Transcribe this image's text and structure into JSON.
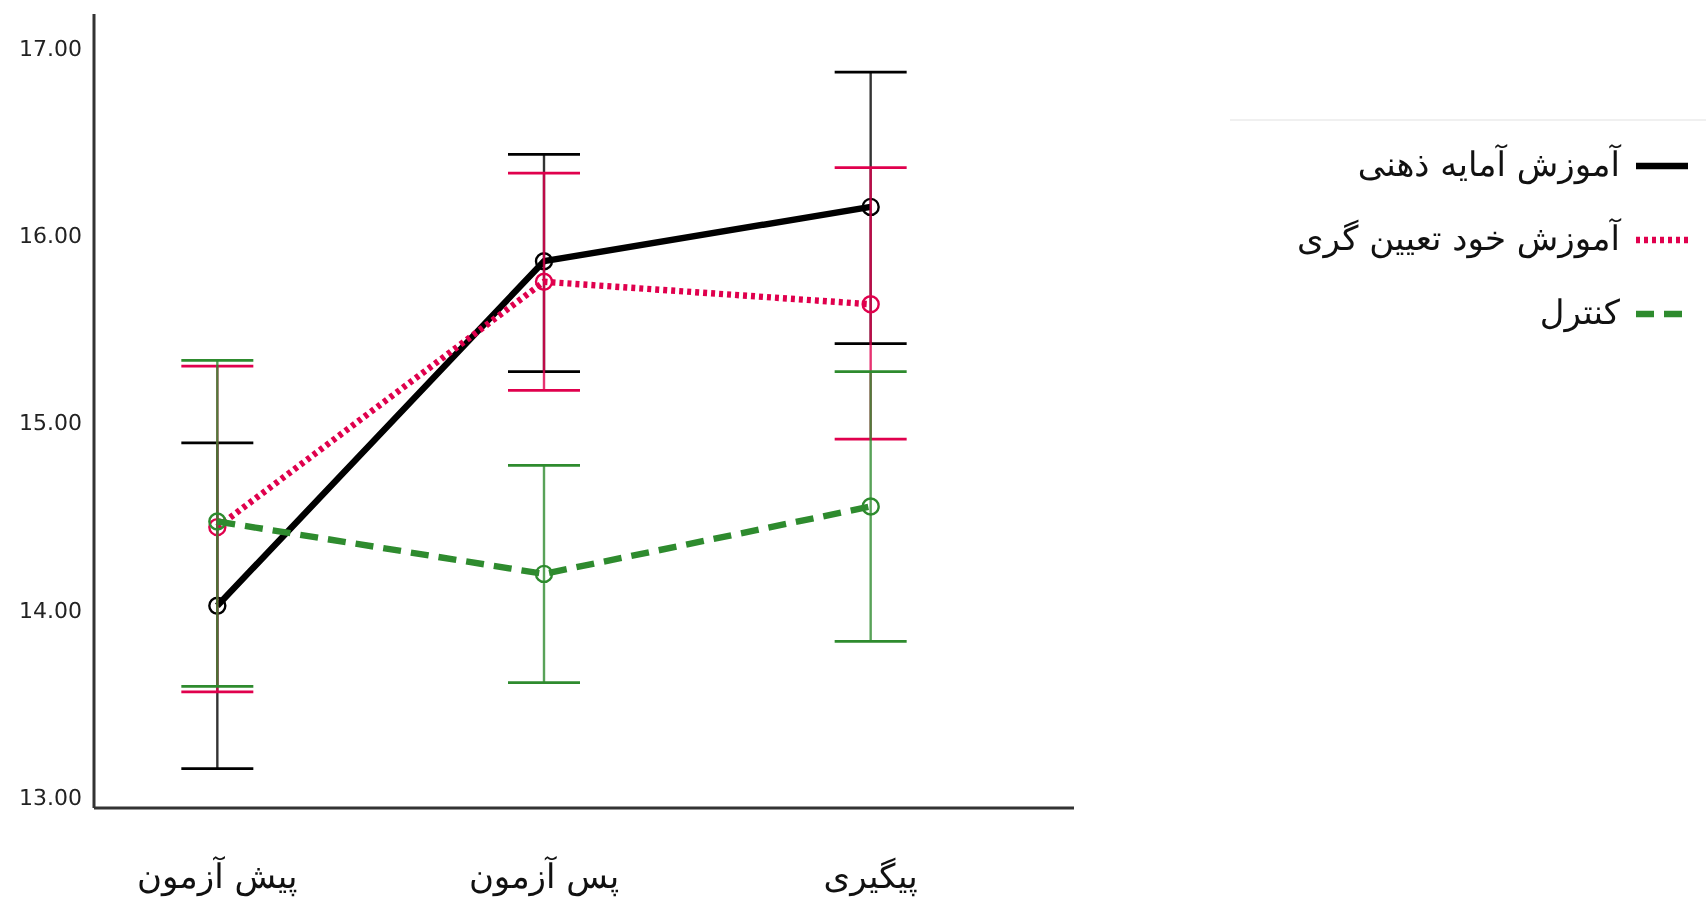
{
  "chart_data": {
    "type": "line",
    "categories": [
      "پیش آزمون",
      "پس آزمون",
      "پیگیری"
    ],
    "ylim": [
      12.94,
      17.18
    ],
    "yticks": [
      {
        "value": 13,
        "label": "13.00"
      },
      {
        "value": 14,
        "label": "14.00"
      },
      {
        "value": 15,
        "label": "15.00"
      },
      {
        "value": 16,
        "label": "16.00"
      },
      {
        "value": 17,
        "label": "17.00"
      }
    ],
    "grid": false,
    "legend": "right",
    "marker": "circle",
    "series": [
      {
        "name": "آموزش آمایه ذهنی",
        "color": "#000000",
        "line_style": "solid",
        "values": [
          14.02,
          15.86,
          16.15
        ],
        "errors": [
          [
            13.15,
            14.89
          ],
          [
            15.27,
            16.43
          ],
          [
            15.42,
            16.87
          ]
        ]
      },
      {
        "name": "آموزش خود تعیین گری",
        "color": "#e0004d",
        "line_style": "dotted",
        "values": [
          14.44,
          15.75,
          15.63
        ],
        "errors": [
          [
            13.56,
            15.3
          ],
          [
            15.17,
            16.33
          ],
          [
            14.91,
            16.36
          ]
        ]
      },
      {
        "name": "کنترل",
        "color": "#2e8b2e",
        "line_style": "dashed",
        "values": [
          14.47,
          14.19,
          14.55
        ],
        "errors": [
          [
            13.59,
            15.33
          ],
          [
            13.61,
            14.77
          ],
          [
            13.83,
            15.27
          ]
        ]
      }
    ]
  }
}
